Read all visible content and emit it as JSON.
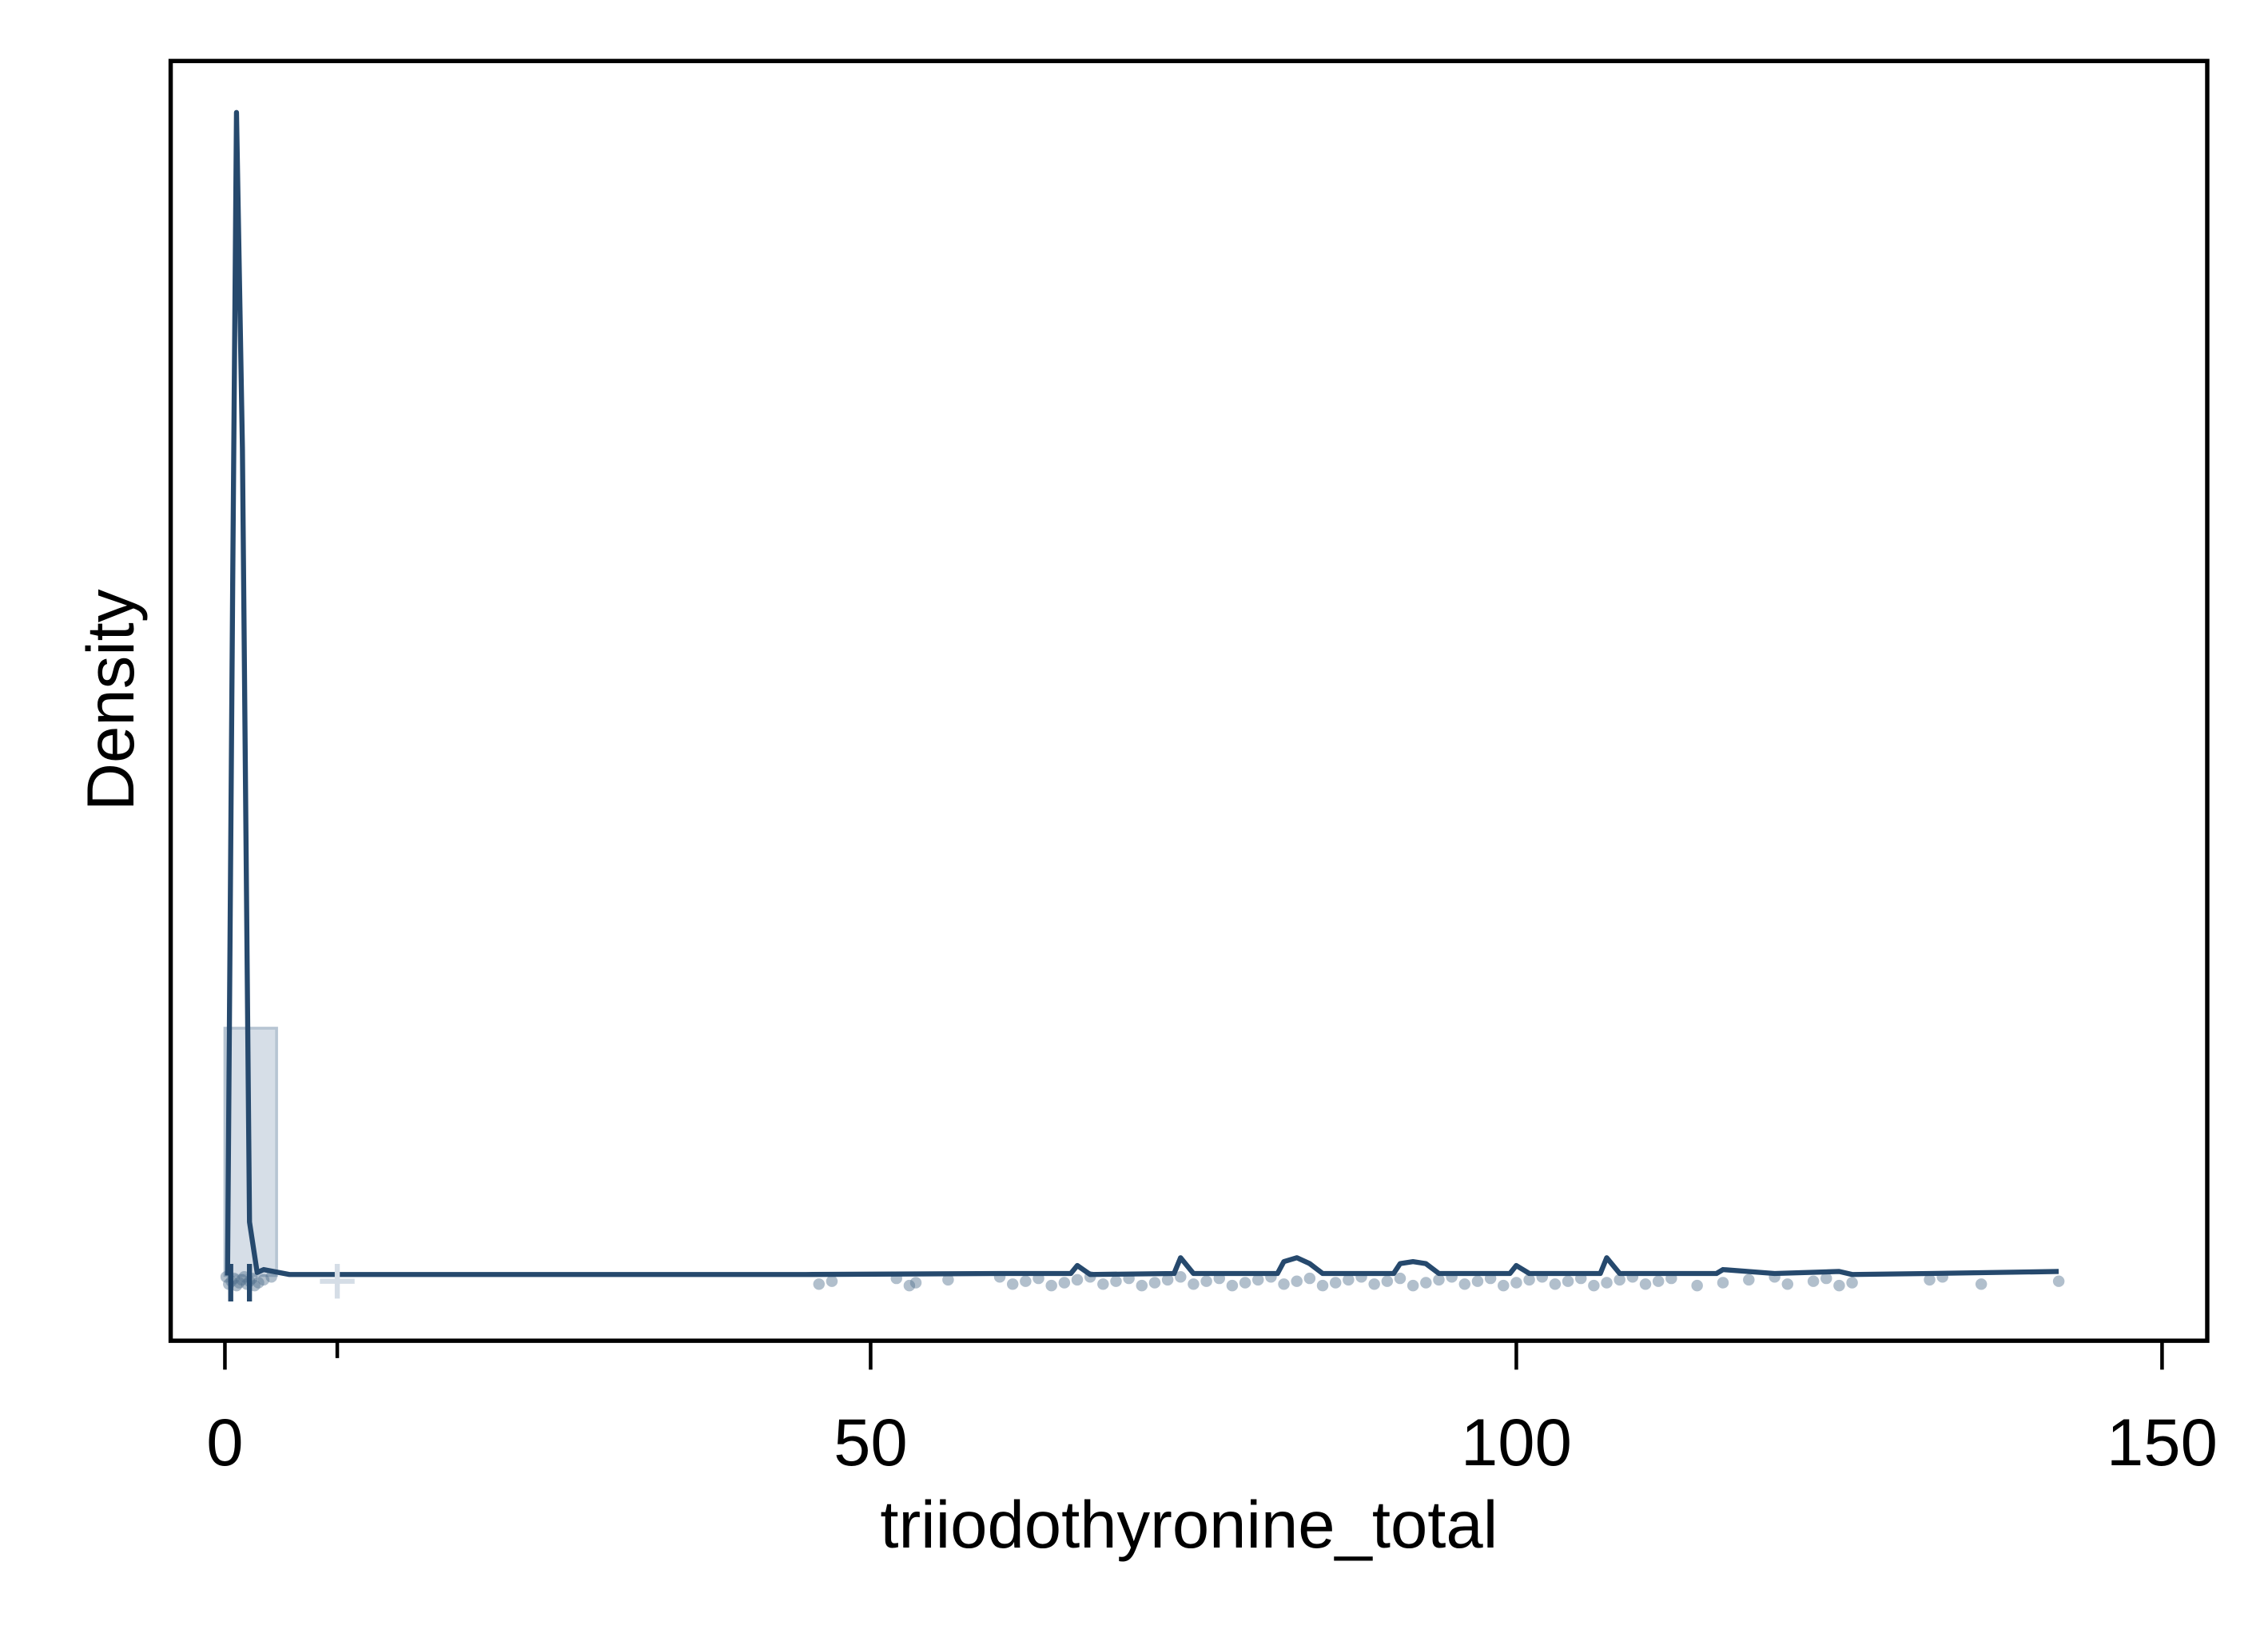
{
  "chart_data": {
    "type": "histogram",
    "x_label": "triiodothyronine_total",
    "y_label": "Density",
    "bins": [
      0,
      4
    ],
    "values": [
      0.125
    ],
    "hist_color": "#d6dee7",
    "line_color": "#26496d",
    "point_color": "#52708f",
    "kde": {
      "x": [
        0.2,
        0.6,
        0.9,
        1.35,
        1.9,
        2.5,
        3,
        5,
        10,
        45,
        60,
        65.5,
        66,
        67,
        73.5,
        74,
        75,
        81.5,
        82,
        83,
        84,
        85,
        90.5,
        91,
        92,
        93,
        94,
        99.5,
        100,
        101,
        106.5,
        107,
        108,
        115.5,
        116,
        120,
        125,
        126,
        132,
        142
      ],
      "y": [
        0,
        0.352,
        0.588,
        0.418,
        0.027,
        0.0015,
        0.003,
        0.0005,
        0.0005,
        0.0005,
        0.001,
        0.001,
        0.005,
        0.0005,
        0.001,
        0.009,
        0.001,
        0.001,
        0.007,
        0.009,
        0.006,
        0.001,
        0.001,
        0.006,
        0.007,
        0.006,
        0.001,
        0.001,
        0.005,
        0.001,
        0.001,
        0.009,
        0.001,
        0.001,
        0.003,
        0.001,
        0.002,
        0.0005,
        0.001,
        0.002
      ]
    },
    "points": [
      0.1,
      0.3,
      0.5,
      0.7,
      0.9,
      1.1,
      1.3,
      1.5,
      1.7,
      1.9,
      2.1,
      2.3,
      2.6,
      3.0,
      3.6,
      46,
      47,
      52,
      53,
      53.5,
      56,
      60,
      61,
      62,
      63,
      64,
      65,
      66,
      67,
      68,
      69,
      70,
      71,
      72,
      73,
      74,
      75,
      76,
      77,
      78,
      79,
      80,
      81,
      82,
      83,
      84,
      85,
      86,
      87,
      88,
      89,
      90,
      91,
      92,
      93,
      94,
      95,
      96,
      97,
      98,
      99,
      100,
      101,
      102,
      103,
      104,
      105,
      106,
      107,
      108,
      109,
      110,
      111,
      112,
      114,
      116,
      118,
      120,
      121,
      123,
      124,
      125,
      126,
      132,
      133,
      136,
      142
    ],
    "reference_lines": [
      0.45,
      1.9
    ],
    "mean_marker": 8.7,
    "xlim": [
      -4.2,
      153.5
    ],
    "ylim": [
      -0.033,
      0.614
    ],
    "xticks": [
      0,
      50,
      100,
      150
    ]
  }
}
